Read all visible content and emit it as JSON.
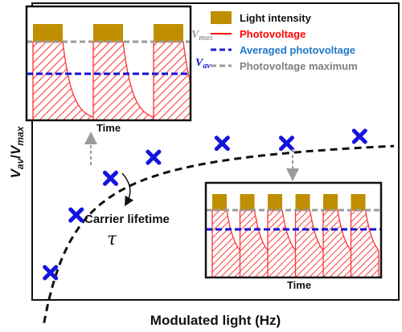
{
  "chart_data": {
    "type": "scatter",
    "xlabel": "Modulated light (Hz)",
    "ylabel_main": "V",
    "ylabel_sub1": "av",
    "ylabel_sep": "/",
    "ylabel_sub2": "max",
    "points_x": [
      1,
      1.6,
      2.4,
      3.4,
      5.0,
      6.5,
      8.2
    ],
    "points_y": [
      0.12,
      0.45,
      0.66,
      0.78,
      0.86,
      0.86,
      0.9
    ],
    "fit_curve": "saturating",
    "annotation": {
      "text": "Carrier lifetime",
      "symbol": "τ"
    },
    "inset_low_freq": {
      "xlabel": "Time",
      "vmax_label_main": "V",
      "vmax_label_sub": "max",
      "vav_label_main": "V",
      "vav_label_sub": "av",
      "pulse_count": 3
    },
    "inset_high_freq": {
      "xlabel": "Time",
      "pulse_count": 6
    },
    "legend": [
      {
        "label": "Light intensity",
        "kind": "box",
        "color": "#bf8f00"
      },
      {
        "label": "Photovoltage",
        "kind": "line",
        "color": "#ff0000"
      },
      {
        "label": "Averaged photovoltage",
        "kind": "dashed",
        "color": "#1f1fd6"
      },
      {
        "label": "Photovoltage maximum",
        "kind": "dashed",
        "color": "#999999"
      }
    ],
    "colors": {
      "light": "#bf8f00",
      "photovoltage": "#ff3030",
      "averaged": "#1010d8",
      "maximum": "#9a9a9a",
      "marker": "#1414e0",
      "legend_red": "#ff0000",
      "legend_blue": "#1f78c8",
      "legend_gray": "#7f7f7f"
    }
  }
}
